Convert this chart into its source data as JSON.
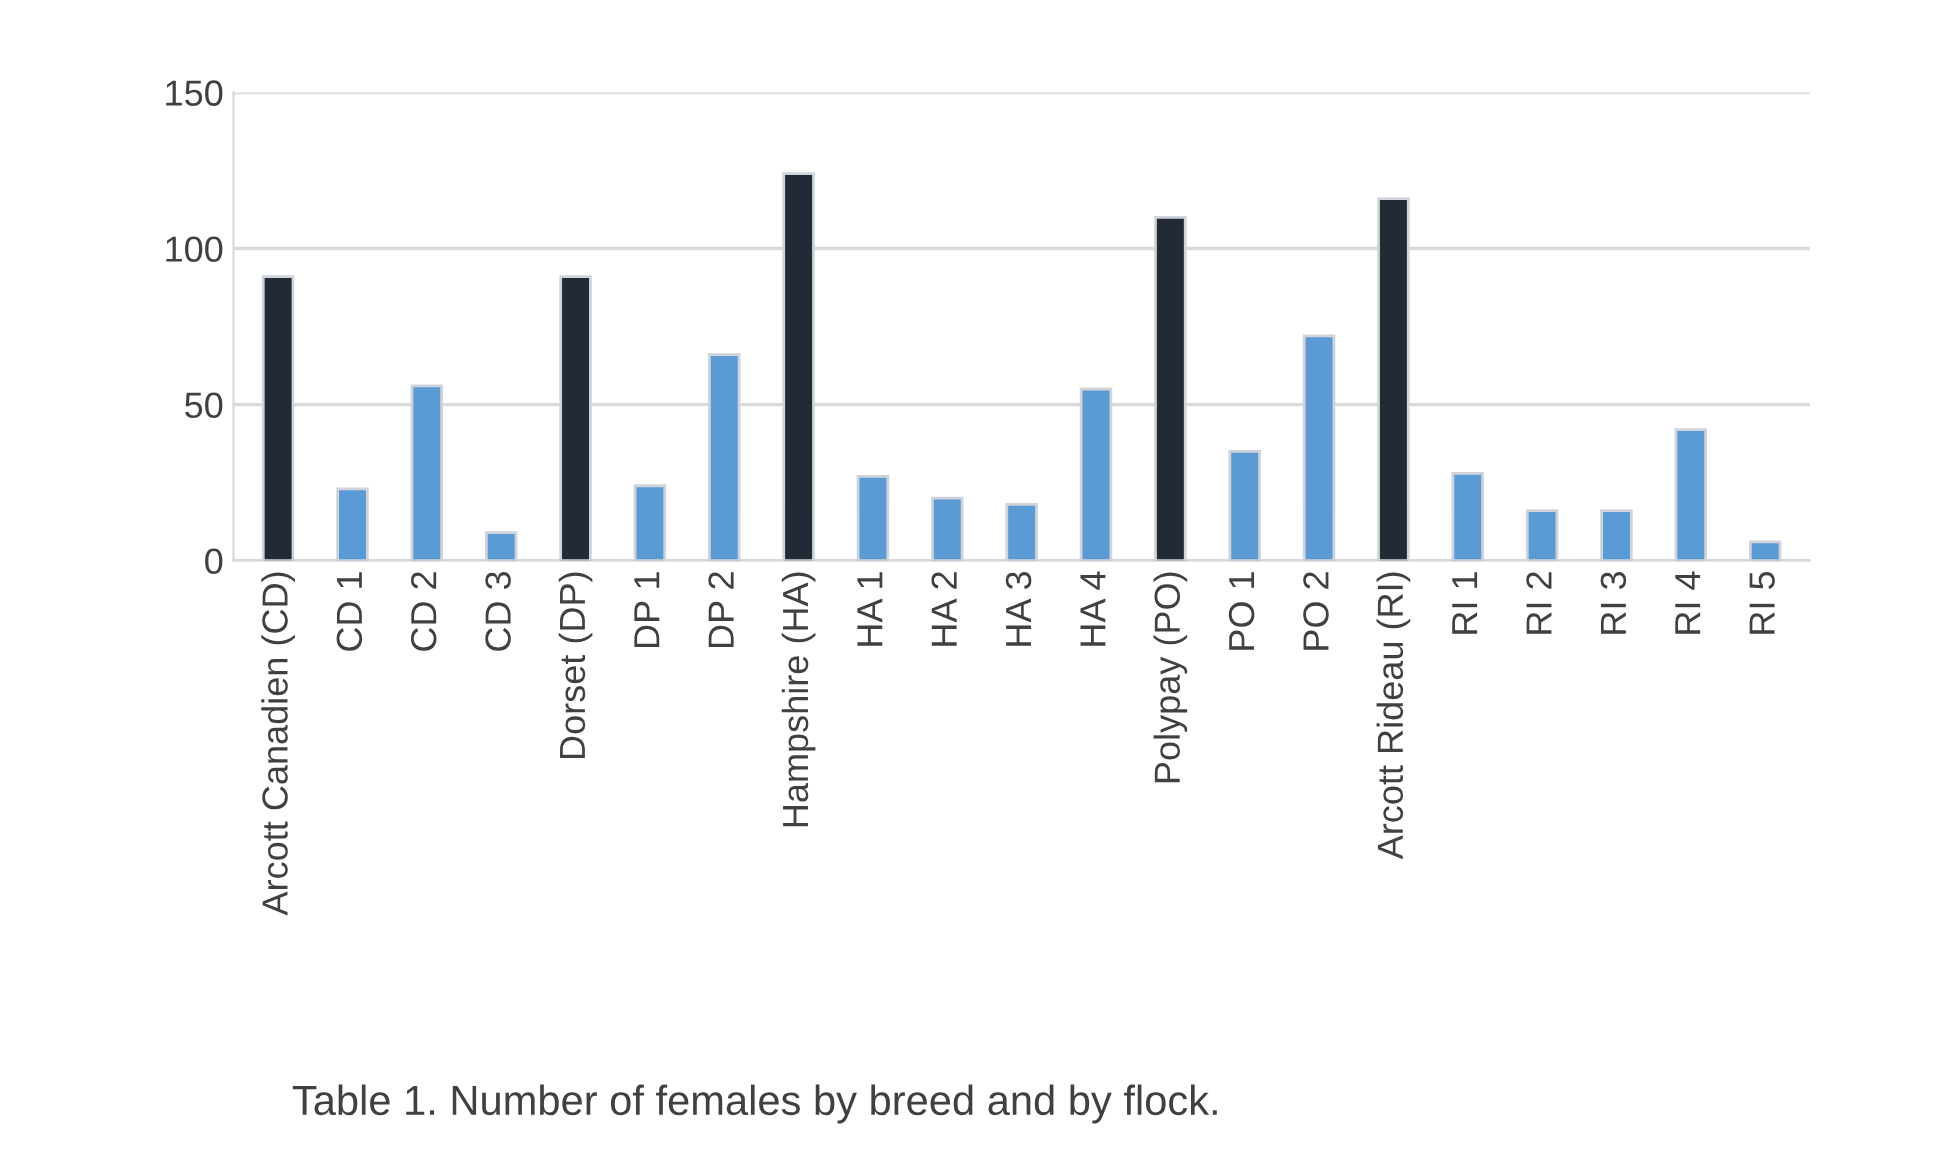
{
  "chart_data": {
    "type": "bar",
    "categories": [
      "Arcott Canadien (CD)",
      "CD 1",
      "CD 2",
      "CD 3",
      "Dorset (DP)",
      "DP 1",
      "DP 2",
      "Hampshire (HA)",
      "HA 1",
      "HA 2",
      "HA 3",
      "HA 4",
      "Polypay (PO)",
      "PO 1",
      "PO 2",
      "Arcott Rideau (RI)",
      "RI 1",
      "RI 2",
      "RI 3",
      "RI 4",
      "RI 5"
    ],
    "values": [
      91,
      23,
      56,
      9,
      91,
      24,
      66,
      124,
      27,
      20,
      18,
      55,
      110,
      35,
      72,
      116,
      28,
      16,
      16,
      42,
      6
    ],
    "colors": [
      "#222a35",
      "#5b9bd5",
      "#5b9bd5",
      "#5b9bd5",
      "#222a35",
      "#5b9bd5",
      "#5b9bd5",
      "#222a35",
      "#5b9bd5",
      "#5b9bd5",
      "#5b9bd5",
      "#5b9bd5",
      "#222a35",
      "#5b9bd5",
      "#5b9bd5",
      "#222a35",
      "#5b9bd5",
      "#5b9bd5",
      "#5b9bd5",
      "#5b9bd5",
      "#5b9bd5"
    ],
    "ylim": [
      0,
      150
    ],
    "yticks": [
      0,
      50,
      100,
      150
    ],
    "grid": "y",
    "annotations": [
      "Table 1. Number of females by breed and by flock."
    ]
  }
}
